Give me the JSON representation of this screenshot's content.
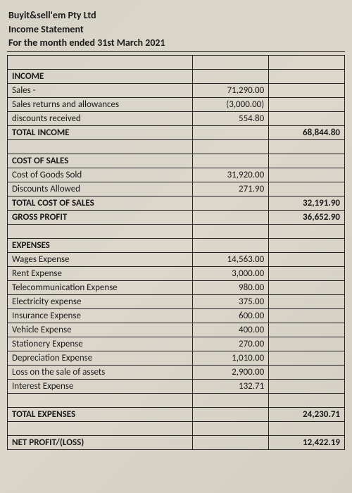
{
  "header": {
    "company": "Buyit&sell'em Pty Ltd",
    "title": "Income Statement",
    "period": "For the month ended 31st March 2021"
  },
  "income": {
    "heading": "INCOME",
    "rows": [
      {
        "label": "Sales -",
        "amount": "71,290.00"
      },
      {
        "label": "Sales returns and allowances",
        "amount": "(3,000.00)"
      },
      {
        "label": "discounts received",
        "amount": "554.80"
      }
    ],
    "total_label": "TOTAL INCOME",
    "total": "68,844.80"
  },
  "cost_of_sales": {
    "heading": "COST OF SALES",
    "rows": [
      {
        "label": "Cost of Goods Sold",
        "amount": "31,920.00"
      },
      {
        "label": "Discounts Allowed",
        "amount": "271.90"
      }
    ],
    "total_label": "TOTAL COST OF SALES",
    "total": "32,191.90",
    "gross_profit_label": "GROSS PROFIT",
    "gross_profit": "36,652.90"
  },
  "expenses": {
    "heading": "EXPENSES",
    "rows": [
      {
        "label": "Wages Expense",
        "amount": "14,563.00"
      },
      {
        "label": "Rent Expense",
        "amount": "3,000.00"
      },
      {
        "label": "Telecommunication Expense",
        "amount": "980.00"
      },
      {
        "label": "Electricity expense",
        "amount": "375.00"
      },
      {
        "label": "Insurance Expense",
        "amount": "600.00"
      },
      {
        "label": "Vehicle Expense",
        "amount": "400.00"
      },
      {
        "label": "Stationery Expense",
        "amount": "270.00"
      },
      {
        "label": "Depreciation Expense",
        "amount": "1,010.00"
      },
      {
        "label": "Loss on the sale of assets",
        "amount": "2,900.00"
      },
      {
        "label": "Interest Expense",
        "amount": "132.71"
      }
    ],
    "total_label": "TOTAL EXPENSES",
    "total": "24,230.71"
  },
  "net": {
    "label": "NET PROFIT/(LOSS)",
    "amount": "12,422.19"
  },
  "style": {
    "background": "#d8d4c8",
    "border_color": "#222222",
    "text_color": "#1a1a1a",
    "font_family": "Calibri",
    "font_size_body": 13,
    "font_size_header": 14,
    "columns": [
      "label",
      "amount",
      "total"
    ],
    "column_align": [
      "left",
      "right",
      "right"
    ]
  }
}
